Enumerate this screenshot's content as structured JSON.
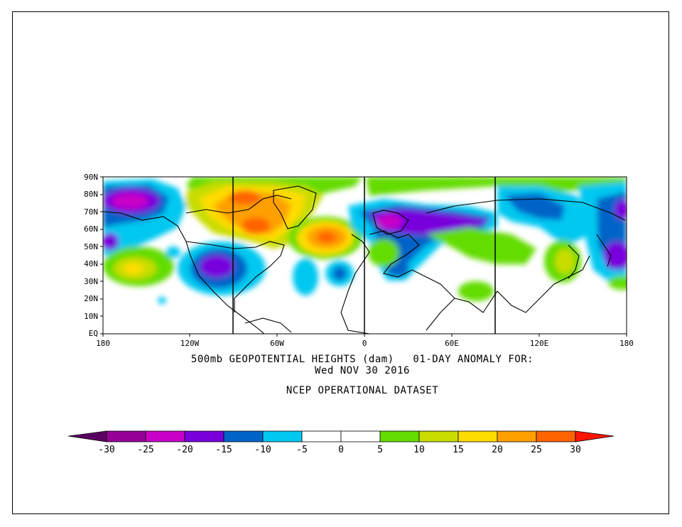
{
  "title": {
    "line1": "500mb GEOPOTENTIAL HEIGHTS (dam)   01-DAY ANOMALY FOR:",
    "line2": "Wed NOV 30 2016",
    "line3": "NCEP OPERATIONAL DATASET"
  },
  "axes": {
    "lat_labels": [
      "90N",
      "80N",
      "70N",
      "60N",
      "50N",
      "40N",
      "30N",
      "20N",
      "10N",
      "EQ"
    ],
    "lon_labels": [
      "180",
      "120W",
      "60W",
      "0",
      "60E",
      "120E",
      "180"
    ]
  },
  "colorbar": {
    "labels": [
      "-30",
      "-25",
      "-20",
      "-15",
      "-10",
      "-5",
      "0",
      "5",
      "10",
      "15",
      "20",
      "25",
      "30"
    ],
    "colors": [
      "#5a0060",
      "#960096",
      "#c800c8",
      "#7800dc",
      "#0064c8",
      "#00c8f0",
      "#ffffff",
      "#ffffff",
      "#64dc00",
      "#c8dc00",
      "#ffdc00",
      "#ffa000",
      "#ff6400",
      "#ff1400",
      "#e10000"
    ]
  },
  "colors": {
    "neg5": "#00c8f0",
    "neg10": "#0064c8",
    "neg15": "#7800dc",
    "neg20": "#c800c8",
    "neg25": "#960096",
    "pos5": "#64dc00",
    "pos10": "#c8dc00",
    "pos15": "#ffdc00",
    "pos20": "#ffa000",
    "pos25": "#ff6400",
    "land": "#000000"
  }
}
